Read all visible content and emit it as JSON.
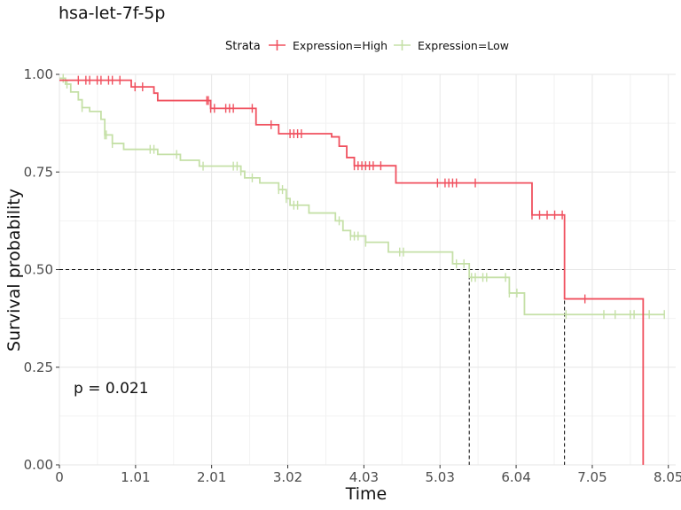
{
  "chart_data": {
    "type": "line",
    "subtype": "kaplan-meier",
    "title": "hsa-let-7f-5p",
    "xlabel": "Time",
    "ylabel": "Survival probability",
    "xlim": [
      0,
      8.15
    ],
    "ylim": [
      0,
      1
    ],
    "xticks": [
      0,
      1.007,
      2.013,
      3.02,
      4.027,
      5.033,
      6.04,
      7.047,
      8.053
    ],
    "xtick_labels": [
      "0",
      "1.01",
      "2.01",
      "3.02",
      "4.03",
      "5.03",
      "6.04",
      "7.05",
      "8.05"
    ],
    "yticks": [
      0,
      0.25,
      0.5,
      0.75,
      1.0
    ],
    "ytick_labels": [
      "0.00",
      "0.25",
      "0.50",
      "0.75",
      "1.00"
    ],
    "grid": true,
    "legend": {
      "title": "Strata",
      "position": "top"
    },
    "annotation": "p = 0.021",
    "median_line": {
      "y": 0.5,
      "x_values": [
        5.42,
        6.68
      ]
    },
    "series": [
      {
        "name": "Expression=High",
        "color": "#f0515f",
        "steps": [
          [
            0,
            0.985
          ],
          [
            0.95,
            0.968
          ],
          [
            1.25,
            0.952
          ],
          [
            1.3,
            0.933
          ],
          [
            2.0,
            0.913
          ],
          [
            2.6,
            0.871
          ],
          [
            2.9,
            0.848
          ],
          [
            3.6,
            0.84
          ],
          [
            3.7,
            0.816
          ],
          [
            3.8,
            0.787
          ],
          [
            3.9,
            0.766
          ],
          [
            4.45,
            0.722
          ],
          [
            6.25,
            0.64
          ],
          [
            6.68,
            0.425
          ],
          [
            7.72,
            0.0
          ]
        ],
        "censor_times": [
          0.25,
          0.35,
          0.4,
          0.5,
          0.55,
          0.65,
          0.7,
          0.8,
          1.0,
          1.1,
          1.95,
          1.97,
          2.0,
          2.05,
          2.2,
          2.25,
          2.3,
          2.55,
          2.8,
          3.05,
          3.1,
          3.15,
          3.2,
          3.9,
          3.95,
          4.0,
          4.05,
          4.1,
          4.15,
          4.25,
          5.0,
          5.1,
          5.15,
          5.2,
          5.25,
          5.5,
          6.25,
          6.35,
          6.45,
          6.55,
          6.65,
          6.95
        ]
      },
      {
        "name": "Expression=Low",
        "color": "#c5e0a7",
        "steps": [
          [
            0,
            0.99
          ],
          [
            0.08,
            0.975
          ],
          [
            0.15,
            0.955
          ],
          [
            0.25,
            0.935
          ],
          [
            0.3,
            0.915
          ],
          [
            0.4,
            0.905
          ],
          [
            0.55,
            0.885
          ],
          [
            0.6,
            0.845
          ],
          [
            0.7,
            0.823
          ],
          [
            0.85,
            0.808
          ],
          [
            1.3,
            0.795
          ],
          [
            1.6,
            0.78
          ],
          [
            1.85,
            0.765
          ],
          [
            2.4,
            0.752
          ],
          [
            2.45,
            0.735
          ],
          [
            2.65,
            0.722
          ],
          [
            2.9,
            0.705
          ],
          [
            3.0,
            0.682
          ],
          [
            3.05,
            0.665
          ],
          [
            3.3,
            0.645
          ],
          [
            3.65,
            0.625
          ],
          [
            3.75,
            0.6
          ],
          [
            3.85,
            0.586
          ],
          [
            4.05,
            0.57
          ],
          [
            4.35,
            0.545
          ],
          [
            5.2,
            0.515
          ],
          [
            5.42,
            0.48
          ],
          [
            5.95,
            0.44
          ],
          [
            6.15,
            0.385
          ]
        ],
        "censor_times": [
          0.05,
          0.1,
          0.3,
          0.6,
          0.62,
          0.7,
          1.2,
          1.25,
          1.55,
          1.9,
          2.3,
          2.35,
          2.4,
          2.55,
          2.9,
          2.95,
          3.0,
          3.1,
          3.15,
          3.7,
          3.85,
          3.9,
          3.95,
          4.05,
          4.5,
          4.55,
          5.25,
          5.35,
          5.45,
          5.5,
          5.6,
          5.65,
          5.9,
          5.95,
          6.05,
          6.7,
          7.2,
          7.35,
          7.55,
          7.6,
          7.8,
          8.0
        ]
      }
    ]
  }
}
